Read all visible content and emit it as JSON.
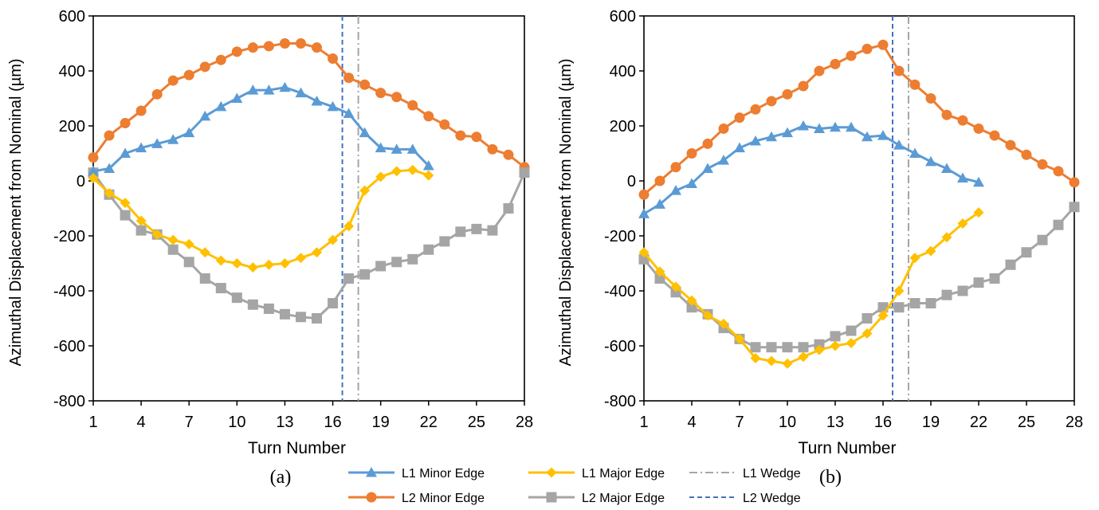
{
  "chart_data": [
    {
      "type": "line",
      "caption": "(a)",
      "xlabel": "Turn Number",
      "ylabel": "Azimuthal Displacement from Nominal (µm)",
      "xlim": [
        1,
        28
      ],
      "ylim": [
        -800,
        600
      ],
      "xticks": [
        1,
        4,
        7,
        10,
        13,
        16,
        19,
        22,
        25,
        28
      ],
      "yticks": [
        -800,
        -600,
        -400,
        -200,
        0,
        200,
        400,
        600
      ],
      "grid": false,
      "series": [
        {
          "name": "L1 Minor Edge",
          "color": "#5b9bd5",
          "marker": "triangle",
          "x": [
            1,
            2,
            3,
            4,
            5,
            6,
            7,
            8,
            9,
            10,
            11,
            12,
            13,
            14,
            15,
            16,
            17,
            18,
            19,
            20,
            21,
            22
          ],
          "y": [
            35,
            45,
            100,
            120,
            135,
            150,
            175,
            235,
            270,
            300,
            330,
            330,
            340,
            320,
            290,
            270,
            245,
            175,
            120,
            115,
            115,
            55
          ]
        },
        {
          "name": "L1 Major Edge",
          "color": "#ffc000",
          "marker": "diamond",
          "x": [
            1,
            2,
            3,
            4,
            5,
            6,
            7,
            8,
            9,
            10,
            11,
            12,
            13,
            14,
            15,
            16,
            17,
            18,
            19,
            20,
            21,
            22
          ],
          "y": [
            10,
            -45,
            -80,
            -145,
            -195,
            -215,
            -230,
            -260,
            -290,
            -300,
            -315,
            -305,
            -300,
            -280,
            -260,
            -215,
            -165,
            -35,
            15,
            35,
            40,
            20
          ]
        },
        {
          "name": "L2 Minor Edge",
          "color": "#ed7d31",
          "marker": "circle",
          "x": [
            1,
            2,
            3,
            4,
            5,
            6,
            7,
            8,
            9,
            10,
            11,
            12,
            13,
            14,
            15,
            16,
            17,
            18,
            19,
            20,
            21,
            22,
            23,
            24,
            25,
            26,
            27,
            28
          ],
          "y": [
            85,
            165,
            210,
            255,
            315,
            365,
            385,
            415,
            440,
            470,
            485,
            490,
            500,
            500,
            485,
            445,
            375,
            350,
            320,
            305,
            275,
            235,
            205,
            165,
            160,
            115,
            95,
            50
          ]
        },
        {
          "name": "L2 Major Edge",
          "color": "#a5a5a5",
          "marker": "square",
          "x": [
            1,
            2,
            3,
            4,
            5,
            6,
            7,
            8,
            9,
            10,
            11,
            12,
            13,
            14,
            15,
            16,
            17,
            18,
            19,
            20,
            21,
            22,
            23,
            24,
            25,
            26,
            27,
            28
          ],
          "y": [
            30,
            -50,
            -125,
            -180,
            -195,
            -250,
            -295,
            -355,
            -390,
            -425,
            -450,
            -465,
            -485,
            -495,
            -500,
            -445,
            -355,
            -340,
            -310,
            -295,
            -285,
            -250,
            -220,
            -185,
            -175,
            -180,
            -100,
            30
          ]
        }
      ],
      "vlines": [
        {
          "name": "L1 Wedge",
          "x": 17.6,
          "color": "#a5a5a5",
          "style": "dashdot"
        },
        {
          "name": "L2 Wedge",
          "x": 16.6,
          "color": "#4472c4",
          "style": "dash"
        }
      ]
    },
    {
      "type": "line",
      "caption": "(b)",
      "xlabel": "Turn Number",
      "ylabel": "Azimuthal Displacement from Nominal (µm)",
      "xlim": [
        1,
        28
      ],
      "ylim": [
        -800,
        600
      ],
      "xticks": [
        1,
        4,
        7,
        10,
        13,
        16,
        19,
        22,
        25,
        28
      ],
      "yticks": [
        -800,
        -600,
        -400,
        -200,
        0,
        200,
        400,
        600
      ],
      "grid": false,
      "series": [
        {
          "name": "L1 Minor Edge",
          "color": "#5b9bd5",
          "marker": "triangle",
          "x": [
            1,
            2,
            3,
            4,
            5,
            6,
            7,
            8,
            9,
            10,
            11,
            12,
            13,
            14,
            15,
            16,
            17,
            18,
            19,
            20,
            21,
            22
          ],
          "y": [
            -120,
            -85,
            -35,
            -10,
            45,
            75,
            120,
            145,
            160,
            175,
            200,
            190,
            195,
            195,
            160,
            165,
            130,
            100,
            70,
            45,
            10,
            -5
          ]
        },
        {
          "name": "L1 Major Edge",
          "color": "#ffc000",
          "marker": "diamond",
          "x": [
            1,
            2,
            3,
            4,
            5,
            6,
            7,
            8,
            9,
            10,
            11,
            12,
            13,
            14,
            15,
            16,
            17,
            18,
            19,
            20,
            21,
            22
          ],
          "y": [
            -260,
            -330,
            -385,
            -435,
            -490,
            -520,
            -575,
            -645,
            -655,
            -665,
            -640,
            -615,
            -600,
            -590,
            -555,
            -490,
            -400,
            -280,
            -255,
            -205,
            -155,
            -115
          ]
        },
        {
          "name": "L2 Minor Edge",
          "color": "#ed7d31",
          "marker": "circle",
          "x": [
            1,
            2,
            3,
            4,
            5,
            6,
            7,
            8,
            9,
            10,
            11,
            12,
            13,
            14,
            15,
            16,
            17,
            18,
            19,
            20,
            21,
            22,
            23,
            24,
            25,
            26,
            27,
            28
          ],
          "y": [
            -50,
            0,
            50,
            100,
            135,
            190,
            230,
            260,
            290,
            315,
            345,
            400,
            425,
            455,
            480,
            495,
            400,
            350,
            300,
            240,
            220,
            190,
            165,
            130,
            95,
            60,
            35,
            -5
          ]
        },
        {
          "name": "L2 Major Edge",
          "color": "#a5a5a5",
          "marker": "square",
          "x": [
            1,
            2,
            3,
            4,
            5,
            6,
            7,
            8,
            9,
            10,
            11,
            12,
            13,
            14,
            15,
            16,
            17,
            18,
            19,
            20,
            21,
            22,
            23,
            24,
            25,
            26,
            27,
            28
          ],
          "y": [
            -285,
            -355,
            -405,
            -460,
            -485,
            -535,
            -575,
            -605,
            -605,
            -605,
            -605,
            -595,
            -565,
            -545,
            -500,
            -460,
            -460,
            -445,
            -445,
            -415,
            -400,
            -370,
            -355,
            -305,
            -260,
            -215,
            -160,
            -95
          ]
        }
      ],
      "vlines": [
        {
          "name": "L1 Wedge",
          "x": 17.6,
          "color": "#a5a5a5",
          "style": "dashdot"
        },
        {
          "name": "L2 Wedge",
          "x": 16.6,
          "color": "#4472c4",
          "style": "dash"
        }
      ]
    }
  ],
  "legend": {
    "placement": "bottom-center",
    "items": [
      {
        "label": "L1 Minor Edge",
        "color": "#5b9bd5",
        "marker": "triangle",
        "style": "solid"
      },
      {
        "label": "L1 Major Edge",
        "color": "#ffc000",
        "marker": "diamond",
        "style": "solid"
      },
      {
        "label": "L1 Wedge",
        "color": "#a5a5a5",
        "marker": "none",
        "style": "dashdot"
      },
      {
        "label": "L2 Minor Edge",
        "color": "#ed7d31",
        "marker": "circle",
        "style": "solid"
      },
      {
        "label": "L2 Major Edge",
        "color": "#a5a5a5",
        "marker": "square",
        "style": "solid"
      },
      {
        "label": "L2 Wedge",
        "color": "#4472c4",
        "marker": "none",
        "style": "dash"
      }
    ]
  }
}
